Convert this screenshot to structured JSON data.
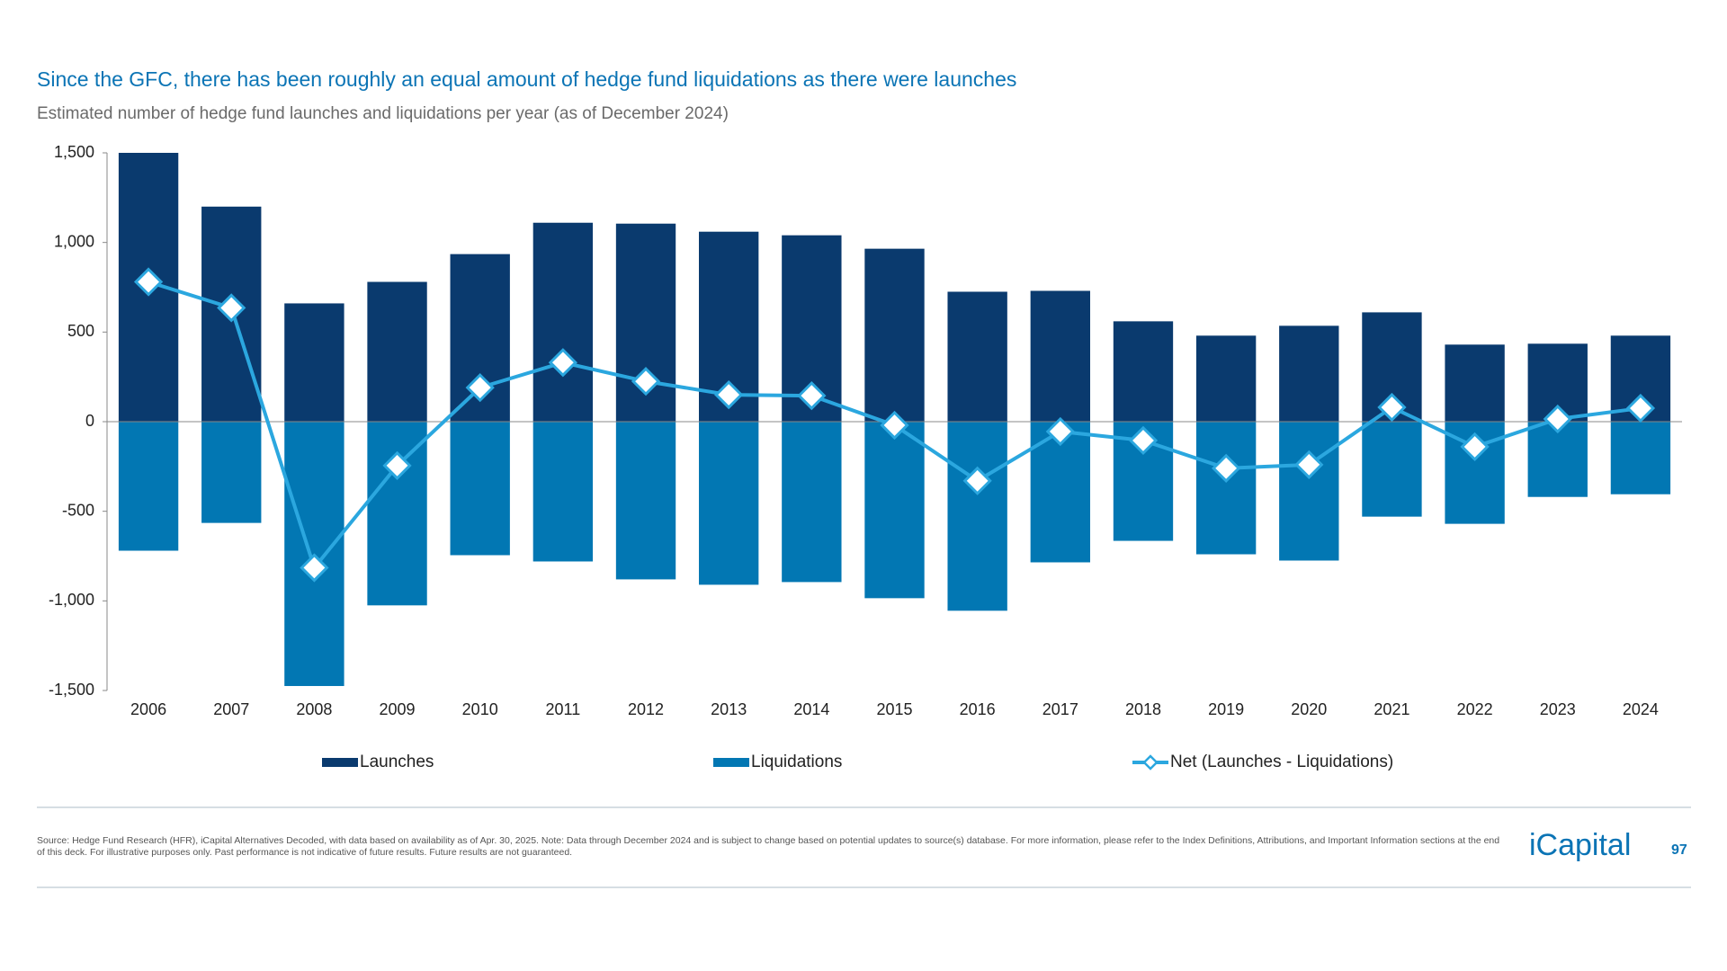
{
  "chart_data": {
    "type": "bar",
    "title": "Since the GFC, there has been roughly an equal amount of hedge fund liquidations as there were launches",
    "subtitle": "Estimated number of hedge fund launches and liquidations per year (as of December 2024)",
    "categories": [
      "2006",
      "2007",
      "2008",
      "2009",
      "2010",
      "2011",
      "2012",
      "2013",
      "2014",
      "2015",
      "2016",
      "2017",
      "2018",
      "2019",
      "2020",
      "2021",
      "2022",
      "2023",
      "2024"
    ],
    "series": [
      {
        "name": "Launches",
        "type": "bar",
        "color": "#0a3a6e",
        "values": [
          1500,
          1200,
          660,
          780,
          935,
          1110,
          1105,
          1060,
          1040,
          965,
          725,
          730,
          560,
          480,
          535,
          610,
          430,
          435,
          480
        ]
      },
      {
        "name": "Liquidations",
        "type": "bar",
        "color": "#0277b3",
        "values": [
          -720,
          -565,
          -1475,
          -1025,
          -745,
          -780,
          -880,
          -910,
          -895,
          -985,
          -1055,
          -785,
          -665,
          -740,
          -775,
          -530,
          -570,
          -420,
          -405
        ]
      },
      {
        "name": "Net (Launches - Liquidations)",
        "type": "line",
        "color": "#2ba7df",
        "values": [
          780,
          635,
          -815,
          -245,
          190,
          330,
          225,
          150,
          145,
          -20,
          -330,
          -55,
          -105,
          -260,
          -240,
          80,
          -140,
          15,
          75
        ]
      }
    ],
    "ylim": [
      -1500,
      1500
    ],
    "yticks": [
      {
        "value": -1500,
        "label": "-1,500"
      },
      {
        "value": -1000,
        "label": "-1,000"
      },
      -500,
      0,
      500,
      {
        "value": 1000,
        "label": "1,000"
      },
      {
        "value": 1500,
        "label": "1,500"
      }
    ],
    "grid": false,
    "legend": "bottom"
  },
  "footnote": "Source: Hedge Fund Research (HFR), iCapital Alternatives Decoded, with data based on availability as of Apr. 30, 2025. Note: Data through December 2024 and is subject to change based on potential updates to source(s) database. For more information, please refer to the Index Definitions, Attributions, and Important Information sections at the end of this deck. For illustrative purposes only. Past performance is not indicative of future results. Future results are not guaranteed.",
  "logo": "iCapital",
  "page_number": "97"
}
